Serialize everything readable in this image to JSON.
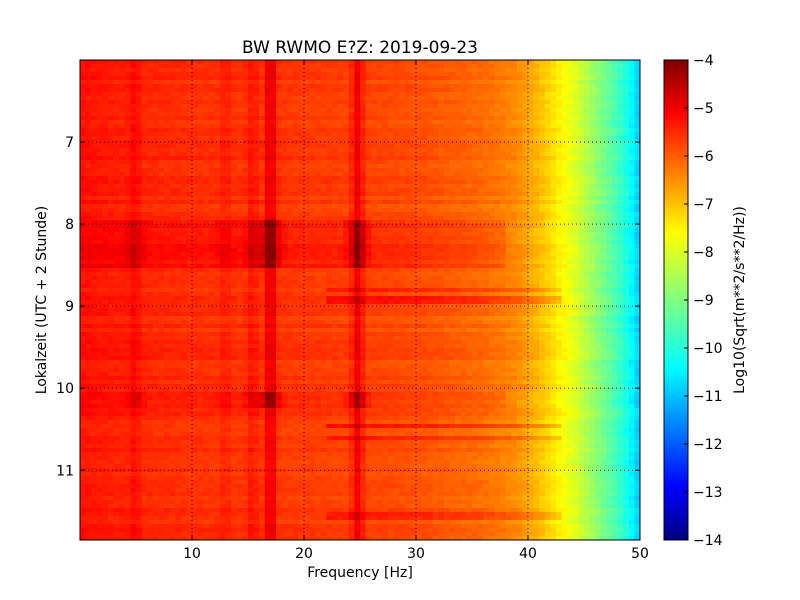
{
  "chart_data": {
    "type": "heatmap",
    "title": "BW RWMO E?Z: 2019-09-23",
    "xlabel": "Frequency [Hz]",
    "ylabel": "Lokalzeit (UTC + 2 Stunde)",
    "xlim": [
      0,
      50
    ],
    "ylim": [
      6.0,
      11.85
    ],
    "y_inverted": true,
    "x_ticks": [
      10,
      20,
      30,
      40,
      50
    ],
    "y_ticks": [
      7,
      8,
      9,
      10,
      11
    ],
    "grid": "dotted",
    "colormap": "jet",
    "colorbar": {
      "label": "Log10(Sqrt(m**2/s**2/Hz))",
      "range": [
        -14,
        -4
      ],
      "ticks": [
        -4,
        -5,
        -6,
        -7,
        -8,
        -9,
        -10,
        -11,
        -12,
        -13,
        -14
      ]
    },
    "spectrum_profile": {
      "frequency_hz": [
        0,
        5,
        10,
        20,
        30,
        36,
        39,
        41,
        42,
        43,
        44,
        45,
        46,
        47,
        48,
        49,
        50
      ],
      "log10_amplitude": [
        -5.4,
        -5.6,
        -5.7,
        -5.8,
        -6.0,
        -6.3,
        -6.6,
        -7.1,
        -7.4,
        -7.7,
        -8.0,
        -8.4,
        -8.8,
        -9.2,
        -9.6,
        -10.1,
        -10.8
      ]
    },
    "features": [
      {
        "type": "vertical_line",
        "frequency_hz": 17.0,
        "delta": 0.9
      },
      {
        "type": "vertical_line",
        "frequency_hz": 24.8,
        "delta": 0.8
      },
      {
        "type": "vertical_line",
        "frequency_hz": 15.4,
        "delta": 0.35
      },
      {
        "type": "vertical_line",
        "frequency_hz": 4.9,
        "delta": 0.3
      },
      {
        "type": "vertical_line",
        "frequency_hz": 13.0,
        "delta": 0.2
      },
      {
        "type": "time_band",
        "start": 7.95,
        "end": 8.55,
        "delta": 0.45
      },
      {
        "type": "time_band",
        "start": 10.05,
        "end": 10.25,
        "delta": 0.35
      },
      {
        "type": "horizontal_line",
        "time": 8.8,
        "delta": 0.5
      },
      {
        "type": "horizontal_line",
        "time": 8.92,
        "delta": 0.5
      },
      {
        "type": "horizontal_line",
        "time": 10.45,
        "delta": 0.6
      },
      {
        "type": "horizontal_line",
        "time": 10.6,
        "delta": 0.4
      },
      {
        "type": "horizontal_line",
        "time": 11.55,
        "delta": 0.4
      }
    ]
  }
}
